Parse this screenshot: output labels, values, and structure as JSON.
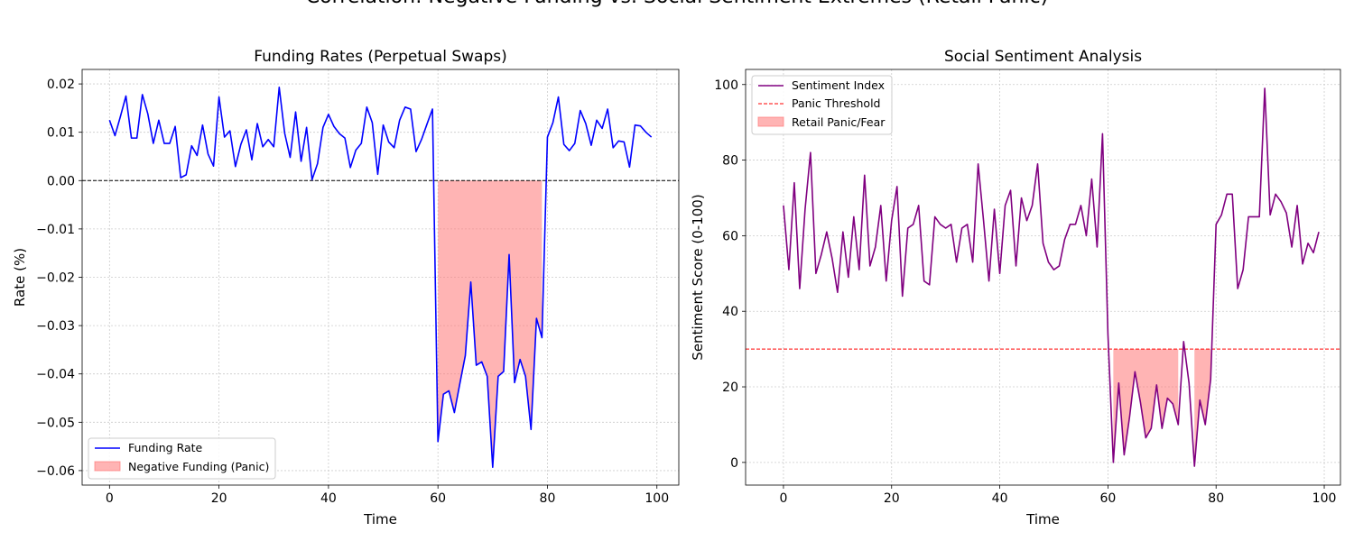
{
  "suptitle": "Correlation: Negative Funding vs. Social Sentiment Extremes (Retail Panic)",
  "chart_data": [
    {
      "type": "line",
      "title": "Funding Rates (Perpetual Swaps)",
      "xlabel": "Time",
      "ylabel": "Rate (%)",
      "xlim": [
        -5,
        104
      ],
      "ylim": [
        -0.063,
        0.023
      ],
      "xticks": [
        0,
        20,
        40,
        60,
        80,
        100
      ],
      "xtick_labels": [
        "0",
        "20",
        "40",
        "60",
        "80",
        "100"
      ],
      "yticks": [
        0.02,
        0.01,
        0.0,
        -0.01,
        -0.02,
        -0.03,
        -0.04,
        -0.05,
        -0.06
      ],
      "ytick_labels": [
        "0.02",
        "0.01",
        "0.00",
        "−0.01",
        "−0.02",
        "−0.03",
        "−0.04",
        "−0.05",
        "−0.06"
      ],
      "grid": true,
      "legend_loc": "lower-left",
      "reference_line": {
        "y": 0.0,
        "color": "#000000",
        "style": "dashed"
      },
      "series": [
        {
          "name": "Funding Rate",
          "color": "#0000ff",
          "x_start": 0,
          "values": [
            0.0125,
            0.0093,
            0.0133,
            0.0175,
            0.0088,
            0.0088,
            0.0178,
            0.0138,
            0.0077,
            0.0125,
            0.0077,
            0.0077,
            0.0112,
            0.0006,
            0.0012,
            0.0072,
            0.0052,
            0.0115,
            0.0055,
            0.003,
            0.0173,
            0.009,
            0.0103,
            0.0029,
            0.0075,
            0.0105,
            0.0043,
            0.0118,
            0.007,
            0.0085,
            0.007,
            0.0193,
            0.0098,
            0.0048,
            0.0142,
            0.004,
            0.011,
            0.0002,
            0.0035,
            0.011,
            0.0137,
            0.0112,
            0.0097,
            0.0088,
            0.0027,
            0.0063,
            0.0077,
            0.0152,
            0.012,
            0.0013,
            0.0115,
            0.008,
            0.0068,
            0.0125,
            0.0152,
            0.0148,
            0.006,
            0.0085,
            0.0117,
            0.0148,
            -0.054,
            -0.0442,
            -0.0435,
            -0.048,
            -0.042,
            -0.0362,
            -0.021,
            -0.0382,
            -0.0375,
            -0.0405,
            -0.0593,
            -0.0405,
            -0.0395,
            -0.0153,
            -0.0418,
            -0.037,
            -0.0405,
            -0.0515,
            -0.0285,
            -0.0325,
            0.009,
            0.012,
            0.0173,
            0.0075,
            0.0062,
            0.0077,
            0.0145,
            0.0118,
            0.0073,
            0.0125,
            0.0108,
            0.0148,
            0.0068,
            0.0082,
            0.008,
            0.0028,
            0.0115,
            0.0113,
            0.01,
            0.009
          ]
        }
      ],
      "fill": {
        "name": "Negative Funding (Panic)",
        "color": "#ff7777",
        "x_range": [
          60,
          79
        ],
        "between": [
          0.0,
          "series"
        ]
      }
    },
    {
      "type": "line",
      "title": "Social Sentiment Analysis",
      "xlabel": "Time",
      "ylabel": "Sentiment Score (0-100)",
      "xlim": [
        -7,
        103
      ],
      "ylim": [
        -6,
        104
      ],
      "xticks": [
        0,
        20,
        40,
        60,
        80,
        100
      ],
      "xtick_labels": [
        "0",
        "20",
        "40",
        "60",
        "80",
        "100"
      ],
      "yticks": [
        0,
        20,
        40,
        60,
        80,
        100
      ],
      "ytick_labels": [
        "0",
        "20",
        "40",
        "60",
        "80",
        "100"
      ],
      "grid": true,
      "legend_loc": "upper-left",
      "reference_line": {
        "name": "Panic Threshold",
        "y": 30,
        "color": "#ff0000",
        "style": "dashed"
      },
      "series": [
        {
          "name": "Sentiment Index",
          "color": "#800080",
          "x_start": 0,
          "values": [
            68,
            51,
            74,
            46,
            67,
            82,
            50,
            55,
            61,
            54,
            45,
            61,
            49,
            65,
            51,
            76,
            52,
            57,
            68,
            48,
            64,
            73,
            44,
            62,
            63,
            68,
            48,
            47,
            65,
            63,
            62,
            63,
            53,
            62,
            63,
            53,
            79,
            64,
            48,
            67,
            50,
            68,
            72,
            52,
            70,
            64,
            68,
            79,
            58,
            53,
            51,
            52,
            59,
            63,
            63,
            68,
            60,
            75,
            57,
            87,
            34,
            0,
            21,
            2,
            12,
            24,
            16,
            6.5,
            9,
            20.5,
            9,
            17,
            15.5,
            10,
            32,
            21,
            -1,
            16.5,
            10,
            22,
            63,
            65.5,
            71,
            71,
            46,
            51,
            65,
            65,
            65,
            99,
            65.5,
            71,
            69,
            66,
            57,
            68,
            52.5,
            58,
            55.5,
            61
          ]
        }
      ],
      "fill": {
        "name": "Retail Panic/Fear",
        "color": "#ff7777",
        "threshold": 30,
        "segments": [
          [
            61,
            73
          ],
          [
            76,
            79
          ]
        ]
      }
    }
  ]
}
